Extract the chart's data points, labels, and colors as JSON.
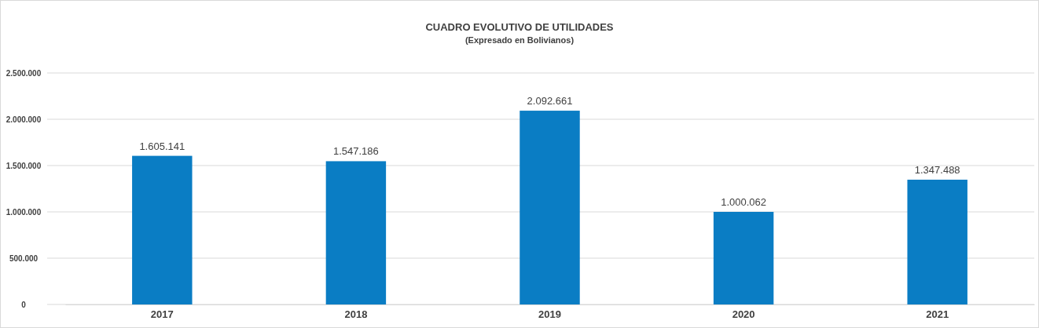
{
  "chart_data": {
    "type": "bar",
    "title": "CUADRO EVOLUTIVO DE UTILIDADES",
    "subtitle": "(Expresado en Bolivianos)",
    "categories": [
      "2017",
      "2018",
      "2019",
      "2020",
      "2021"
    ],
    "values": [
      1605141,
      1547186,
      2092661,
      1000062,
      1347488
    ],
    "value_labels": [
      "1.605.141",
      "1.547.186",
      "2.092.661",
      "1.000.062",
      "1.347.488"
    ],
    "color": "#0a7dc4",
    "ylim": [
      0,
      2500000
    ],
    "yticks": [
      {
        "value": 0,
        "label": "0"
      },
      {
        "value": 500000,
        "label": "500.000"
      },
      {
        "value": 1000000,
        "label": "1.000.000"
      },
      {
        "value": 1500000,
        "label": "1.500.000"
      },
      {
        "value": 2000000,
        "label": "2.000.000"
      },
      {
        "value": 2500000,
        "label": "2.500.000"
      }
    ],
    "grid": "y"
  }
}
